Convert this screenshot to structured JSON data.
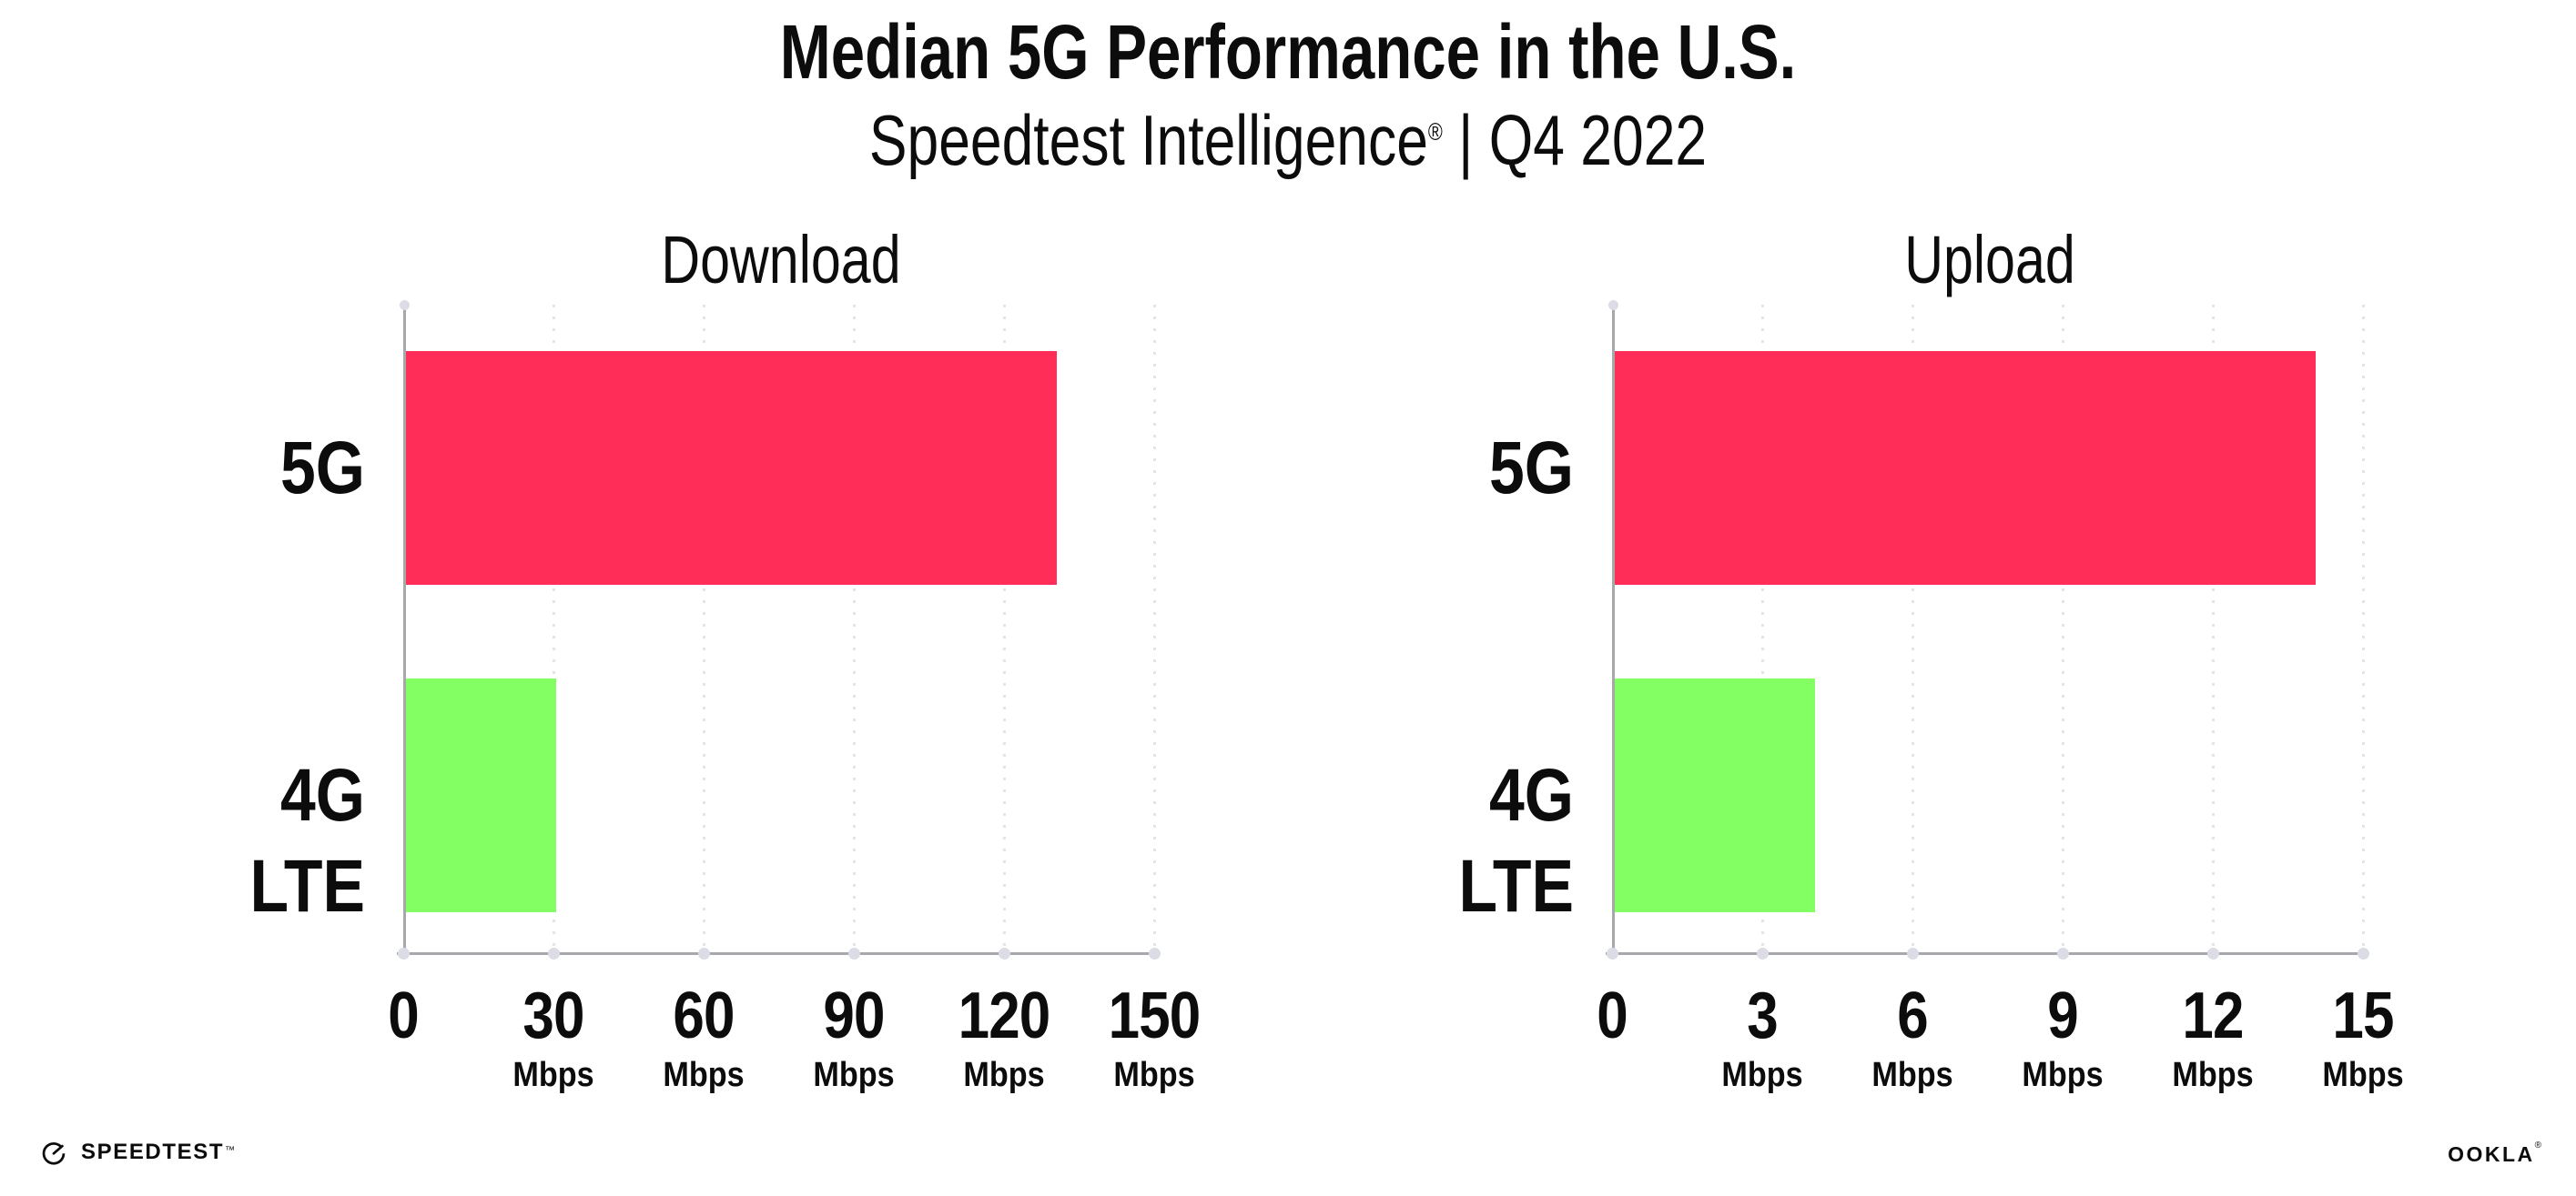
{
  "header": {
    "title": "Median 5G Performance in the U.S.",
    "subtitle_brand": "Speedtest Intelligence",
    "subtitle_registered": "®",
    "subtitle_period": " | Q4 2022"
  },
  "chart_data": [
    {
      "type": "bar",
      "orientation": "horizontal",
      "title": "Download",
      "categories": [
        "5G",
        "4G LTE"
      ],
      "values": [
        130,
        30
      ],
      "unit": "Mbps",
      "xlim": [
        0,
        150
      ],
      "xticks": [
        0,
        30,
        60,
        90,
        120,
        150
      ],
      "bar_colors": [
        "#FF2D57",
        "#84FF63"
      ],
      "grid": "dotted vertical gridline at each tick",
      "legend": "none"
    },
    {
      "type": "bar",
      "orientation": "horizontal",
      "title": "Upload",
      "categories": [
        "5G",
        "4G LTE"
      ],
      "values": [
        14,
        4
      ],
      "unit": "Mbps",
      "xlim": [
        0,
        15
      ],
      "xticks": [
        0,
        3,
        6,
        9,
        12,
        15
      ],
      "bar_colors": [
        "#FF2D57",
        "#84FF63"
      ],
      "grid": "dotted vertical gridline at each tick",
      "legend": "none"
    }
  ],
  "footer": {
    "speedtest_wordmark": "SPEEDTEST",
    "speedtest_trademark": "™",
    "ookla_wordmark": "OOKLA",
    "ookla_trademark": "®"
  },
  "colors": {
    "background": "#FFFFFF",
    "text": "#0C0C0D",
    "bar_5g": "#FF2D57",
    "bar_4g_lte": "#84FF63",
    "axis_line": "#A7A8AC",
    "gridline_dots": "#E3E4EB",
    "axis_tick_dots": "#DBDCE6"
  }
}
